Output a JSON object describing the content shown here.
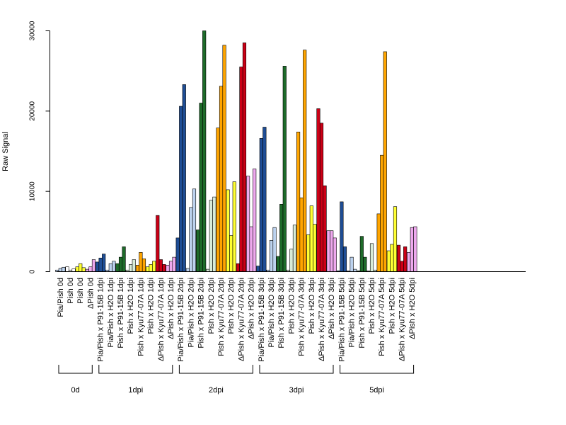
{
  "chart_data": {
    "type": "bar",
    "title": "",
    "xlabel": "",
    "ylabel": "Raw Signal",
    "ylim": [
      0,
      30000
    ],
    "yticks": [
      0,
      10000,
      20000,
      30000
    ],
    "grid": false,
    "legend": "none",
    "categories": [
      "Pia/Pish 0d",
      "Pish 0d",
      "Pish 0d",
      "ΔPish 0d",
      "Pia/Pish x P91-15B 1dpi",
      "Pia/Pish x H2O 1dpi",
      "Pish x P91-15B 1dpi",
      "Pish x H2O 1dpi",
      "Pish x Kyu77-07A 1dpi",
      "Pish x H2O 1dpi",
      "ΔPish x Kyu77-07A 1dpi",
      "ΔPish x H2O 1dpi",
      "Pia/Pish x P91-15B 2dpi",
      "Pia/Pish x H2O 2dpi",
      "Pish x P91-15B 2dpi",
      "Pish x H2O 2dpi",
      "Pish x Kyu77-07A 2dpi",
      "Pish x H2O 2dpi",
      "ΔPish x Kyu77-07A 2dpi",
      "ΔPish x H2O 2dpi",
      "Pia/Pish x P91-15B 3dpi",
      "Pia/Pish x H2O 3dpi",
      "Pish x P91-15B 3dpi",
      "Pish x H2O 3dpi",
      "Pish x Kyu77-07A 3dpi",
      "Pish x H2O 3dpi",
      "ΔPish x Kyu77-07A 3dpi",
      "ΔPish x H2O 3dpi",
      "Pia/Pish x P91-15B 5dpi",
      "Pia/Pish x H2O 5dpi",
      "Pish x P91-15B 5dpi",
      "Pish x H2O 5dpi",
      "Pish x Kyu77-07A 5dpi",
      "Pish x H2O 5dpi",
      "ΔPish x Kyu77-07A 5dpi",
      "ΔPish x H2O 5dpi"
    ],
    "colors": [
      "#bcd2ee",
      "#ffffff",
      "#ffff33",
      "#eea9ee",
      "#1f4e96",
      "#bcd2ee",
      "#1e6b2a",
      "#d8ecd8",
      "#ffa500",
      "#ffff33",
      "#cc0016",
      "#eea9ee",
      "#1f4e96",
      "#bcd2ee",
      "#1e6b2a",
      "#d8ecd8",
      "#ffa500",
      "#ffff33",
      "#cc0016",
      "#eea9ee",
      "#1f4e96",
      "#bcd2ee",
      "#1e6b2a",
      "#d8ecd8",
      "#ffa500",
      "#ffff33",
      "#cc0016",
      "#eea9ee",
      "#1f4e96",
      "#bcd2ee",
      "#1e6b2a",
      "#d8ecd8",
      "#ffa500",
      "#ffff33",
      "#cc0016",
      "#eea9ee"
    ],
    "values": [
      [
        200,
        400,
        550
      ],
      [
        600,
        200,
        350
      ],
      [
        600,
        1000,
        500
      ],
      [
        300,
        600,
        1500
      ],
      [
        1200,
        1700,
        2200
      ],
      [
        200,
        1000,
        1300
      ],
      [
        1000,
        1800,
        3100
      ],
      [
        200,
        900,
        1500
      ],
      [
        800,
        2400,
        1600
      ],
      [
        600,
        900,
        1300
      ],
      [
        7000,
        1500,
        900
      ],
      [
        800,
        1300,
        1800
      ],
      [
        4200,
        20600,
        23300
      ],
      [
        400,
        8000,
        10300
      ],
      [
        5200,
        21000,
        30000
      ],
      [
        300,
        8900,
        9300
      ],
      [
        17900,
        23100,
        28200
      ],
      [
        10200,
        4500,
        11200
      ],
      [
        1000,
        25500,
        28500
      ],
      [
        11900,
        5600,
        12800
      ],
      [
        700,
        16600,
        18000
      ],
      [
        200,
        3900,
        5500
      ],
      [
        1900,
        8400,
        25600
      ],
      [
        200,
        2800,
        5800
      ],
      [
        17400,
        9200,
        27600
      ],
      [
        4600,
        8200,
        5900
      ],
      [
        20300,
        18500,
        10700
      ],
      [
        5100,
        5100,
        4200
      ],
      [
        100,
        8700,
        3100
      ],
      [
        100,
        1800,
        300
      ],
      [
        100,
        4400,
        1800
      ],
      [
        100,
        3500,
        200
      ],
      [
        7200,
        14500,
        27400
      ],
      [
        2600,
        3400,
        8100
      ],
      [
        3300,
        1300,
        3100
      ],
      [
        2400,
        5500,
        5600
      ]
    ],
    "groups": [
      {
        "label": "0d",
        "count": 4
      },
      {
        "label": "1dpi",
        "count": 8
      },
      {
        "label": "2dpi",
        "count": 8
      },
      {
        "label": "3dpi",
        "count": 8
      },
      {
        "label": "5dpi",
        "count": 8
      }
    ]
  }
}
